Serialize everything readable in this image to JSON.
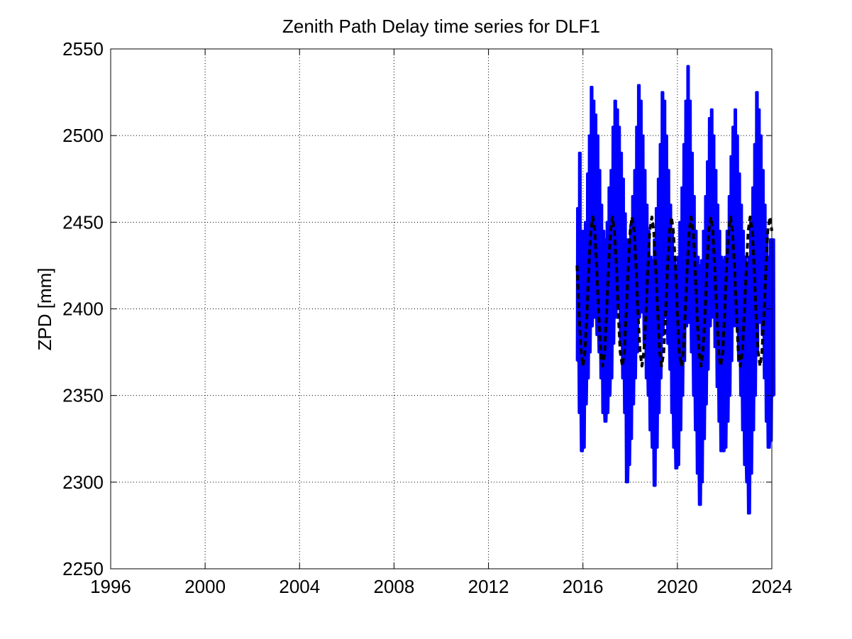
{
  "chart_data": {
    "type": "line",
    "title": "Zenith Path Delay time series for DLF1",
    "xlabel": "",
    "ylabel": "ZPD [mm]",
    "xlim": [
      1996,
      2024
    ],
    "ylim": [
      2250,
      2550
    ],
    "x_ticks": [
      "1996",
      "2000",
      "2004",
      "2008",
      "2012",
      "2016",
      "2020",
      "2024"
    ],
    "y_ticks": [
      "2250",
      "2300",
      "2350",
      "2400",
      "2450",
      "2500",
      "2550"
    ],
    "grid": true,
    "series": [
      {
        "style": "solid",
        "color": "#0000ff",
        "x": [
          2015.75,
          2015.83,
          2015.92,
          2016.0,
          2016.08,
          2016.17,
          2016.25,
          2016.33,
          2016.42,
          2016.5,
          2016.58,
          2016.67,
          2016.75,
          2016.83,
          2016.92,
          2017.0,
          2017.08,
          2017.17,
          2017.25,
          2017.33,
          2017.42,
          2017.5,
          2017.58,
          2017.67,
          2017.75,
          2017.83,
          2017.92,
          2018.0,
          2018.08,
          2018.17,
          2018.25,
          2018.33,
          2018.42,
          2018.5,
          2018.58,
          2018.67,
          2018.75,
          2018.83,
          2018.92,
          2019.0,
          2019.08,
          2019.17,
          2019.25,
          2019.33,
          2019.42,
          2019.5,
          2019.58,
          2019.67,
          2019.75,
          2019.83,
          2019.92,
          2020.0,
          2020.08,
          2020.17,
          2020.25,
          2020.33,
          2020.42,
          2020.5,
          2020.58,
          2020.67,
          2020.75,
          2020.83,
          2020.92,
          2021.0,
          2021.08,
          2021.17,
          2021.25,
          2021.33,
          2021.42,
          2021.5,
          2021.58,
          2021.67,
          2021.75,
          2021.83,
          2021.92,
          2022.0,
          2022.08,
          2022.17,
          2022.25,
          2022.33,
          2022.42,
          2022.5,
          2022.58,
          2022.67,
          2022.75,
          2022.83,
          2022.92,
          2023.0,
          2023.08,
          2023.17,
          2023.25,
          2023.33,
          2023.42,
          2023.5,
          2023.58,
          2023.67,
          2023.75,
          2023.83,
          2023.92,
          2024.0
        ],
        "y_min": [
          2370,
          2340,
          2318,
          2320,
          2345,
          2360,
          2375,
          2390,
          2395,
          2400,
          2385,
          2375,
          2360,
          2340,
          2335,
          2340,
          2350,
          2360,
          2380,
          2395,
          2400,
          2405,
          2380,
          2360,
          2340,
          2300,
          2310,
          2325,
          2345,
          2360,
          2375,
          2395,
          2400,
          2398,
          2380,
          2360,
          2350,
          2330,
          2320,
          2298,
          2320,
          2340,
          2360,
          2385,
          2395,
          2398,
          2380,
          2365,
          2340,
          2320,
          2308,
          2310,
          2330,
          2350,
          2370,
          2390,
          2395,
          2392,
          2375,
          2350,
          2330,
          2305,
          2287,
          2300,
          2325,
          2345,
          2365,
          2390,
          2398,
          2395,
          2378,
          2355,
          2335,
          2318,
          2318,
          2320,
          2335,
          2350,
          2370,
          2390,
          2395,
          2390,
          2370,
          2350,
          2330,
          2310,
          2300,
          2282,
          2305,
          2330,
          2350,
          2375,
          2392,
          2398,
          2385,
          2360,
          2335,
          2320,
          2324,
          2350
        ],
        "y_max": [
          2458,
          2490,
          2445,
          2445,
          2450,
          2478,
          2500,
          2528,
          2520,
          2512,
          2500,
          2480,
          2460,
          2445,
          2440,
          2450,
          2470,
          2480,
          2505,
          2520,
          2515,
          2505,
          2490,
          2475,
          2455,
          2440,
          2440,
          2448,
          2465,
          2480,
          2505,
          2529,
          2520,
          2500,
          2480,
          2460,
          2445,
          2430,
          2428,
          2440,
          2458,
          2475,
          2495,
          2525,
          2520,
          2500,
          2480,
          2460,
          2445,
          2430,
          2425,
          2430,
          2450,
          2470,
          2495,
          2520,
          2540,
          2520,
          2490,
          2465,
          2445,
          2430,
          2425,
          2428,
          2445,
          2465,
          2485,
          2510,
          2515,
          2500,
          2480,
          2460,
          2445,
          2430,
          2428,
          2430,
          2445,
          2465,
          2488,
          2505,
          2515,
          2500,
          2478,
          2460,
          2445,
          2430,
          2425,
          2430,
          2450,
          2470,
          2495,
          2525,
          2515,
          2500,
          2480,
          2460,
          2445,
          2430,
          2440,
          2440
        ]
      },
      {
        "style": "dashed",
        "color": "#000000",
        "x": [
          2015.75,
          2015.83,
          2015.92,
          2016.0,
          2016.08,
          2016.17,
          2016.25,
          2016.33,
          2016.42,
          2016.5,
          2016.58,
          2016.67,
          2016.75,
          2016.83,
          2016.92,
          2017.0,
          2017.08,
          2017.17,
          2017.25,
          2017.33,
          2017.42,
          2017.5,
          2017.58,
          2017.67,
          2017.75,
          2017.83,
          2017.92,
          2018.0,
          2018.08,
          2018.17,
          2018.25,
          2018.33,
          2018.42,
          2018.5,
          2018.58,
          2018.67,
          2018.75,
          2018.83,
          2018.92,
          2019.0,
          2019.08,
          2019.17,
          2019.25,
          2019.33,
          2019.42,
          2019.5,
          2019.58,
          2019.67,
          2019.75,
          2019.83,
          2019.92,
          2020.0,
          2020.08,
          2020.17,
          2020.25,
          2020.33,
          2020.42,
          2020.5,
          2020.58,
          2020.67,
          2020.75,
          2020.83,
          2020.92,
          2021.0,
          2021.08,
          2021.17,
          2021.25,
          2021.33,
          2021.42,
          2021.5,
          2021.58,
          2021.67,
          2021.75,
          2021.83,
          2021.92,
          2022.0,
          2022.08,
          2022.17,
          2022.25,
          2022.33,
          2022.42,
          2022.5,
          2022.58,
          2022.67,
          2022.75,
          2022.83,
          2022.92,
          2023.0,
          2023.08,
          2023.17,
          2023.25,
          2023.33,
          2023.42,
          2023.5,
          2023.58,
          2023.67,
          2023.75,
          2023.83,
          2023.92,
          2024.0
        ],
        "y": [
          2425,
          2398,
          2376,
          2367,
          2375,
          2397,
          2424,
          2445,
          2453,
          2445,
          2424,
          2397,
          2375,
          2367,
          2375,
          2397,
          2424,
          2445,
          2453,
          2445,
          2424,
          2397,
          2375,
          2367,
          2375,
          2397,
          2424,
          2445,
          2453,
          2445,
          2424,
          2397,
          2375,
          2367,
          2375,
          2397,
          2424,
          2445,
          2453,
          2445,
          2424,
          2397,
          2375,
          2367,
          2375,
          2397,
          2424,
          2445,
          2453,
          2445,
          2424,
          2397,
          2375,
          2367,
          2375,
          2397,
          2424,
          2445,
          2453,
          2445,
          2424,
          2397,
          2375,
          2367,
          2375,
          2397,
          2424,
          2445,
          2453,
          2445,
          2424,
          2397,
          2375,
          2367,
          2375,
          2397,
          2424,
          2445,
          2453,
          2445,
          2424,
          2397,
          2375,
          2367,
          2375,
          2397,
          2424,
          2445,
          2453,
          2445,
          2424,
          2397,
          2375,
          2367,
          2375,
          2397,
          2424,
          2445,
          2453,
          2445
        ]
      }
    ]
  }
}
